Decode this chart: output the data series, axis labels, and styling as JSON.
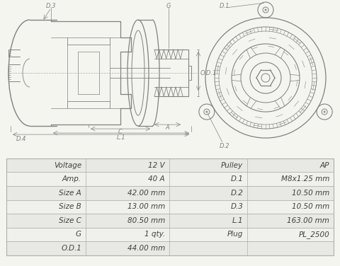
{
  "table_rows": [
    [
      "Voltage",
      "12 V",
      "Pulley",
      "AP"
    ],
    [
      "Amp.",
      "40 A",
      "D.1",
      "M8x1.25 mm"
    ],
    [
      "Size A",
      "42.00 mm",
      "D.2",
      "10.50 mm"
    ],
    [
      "Size B",
      "13.00 mm",
      "D.3",
      "10.50 mm"
    ],
    [
      "Size C",
      "80.50 mm",
      "L.1",
      "163.00 mm"
    ],
    [
      "G",
      "1 qty.",
      "Plug",
      "PL_2500"
    ],
    [
      "O.D.1",
      "44.00 mm",
      "",
      ""
    ]
  ],
  "bg_color": "#f5f5f0",
  "line_color": "#808080",
  "table_bg1": "#e8e8e4",
  "table_bg2": "#f0f0ec",
  "table_border": "#b0b0a8",
  "text_color": "#404040",
  "diagram_bg": "#f5f5f0"
}
